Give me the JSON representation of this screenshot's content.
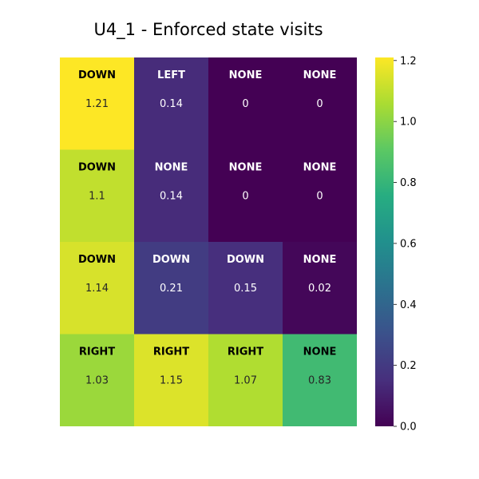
{
  "chart_data": {
    "type": "heatmap",
    "title": "U4_1 - Enforced state visits",
    "rows": 4,
    "cols": 4,
    "cells": [
      [
        {
          "action": "DOWN",
          "value": 1.21,
          "label": "1.21"
        },
        {
          "action": "LEFT",
          "value": 0.14,
          "label": "0.14"
        },
        {
          "action": "NONE",
          "value": 0,
          "label": "0"
        },
        {
          "action": "NONE",
          "value": 0,
          "label": "0"
        }
      ],
      [
        {
          "action": "DOWN",
          "value": 1.1,
          "label": "1.1"
        },
        {
          "action": "NONE",
          "value": 0.14,
          "label": "0.14"
        },
        {
          "action": "NONE",
          "value": 0,
          "label": "0"
        },
        {
          "action": "NONE",
          "value": 0,
          "label": "0"
        }
      ],
      [
        {
          "action": "DOWN",
          "value": 1.14,
          "label": "1.14"
        },
        {
          "action": "DOWN",
          "value": 0.21,
          "label": "0.21"
        },
        {
          "action": "DOWN",
          "value": 0.15,
          "label": "0.15"
        },
        {
          "action": "NONE",
          "value": 0.02,
          "label": "0.02"
        }
      ],
      [
        {
          "action": "RIGHT",
          "value": 1.03,
          "label": "1.03"
        },
        {
          "action": "RIGHT",
          "value": 1.15,
          "label": "1.15"
        },
        {
          "action": "RIGHT",
          "value": 1.07,
          "label": "1.07"
        },
        {
          "action": "NONE",
          "value": 0.83,
          "label": "0.83"
        }
      ]
    ],
    "colorbar": {
      "colormap": "viridis",
      "range": [
        0,
        1.21
      ],
      "ticks": [
        0.0,
        0.2,
        0.4,
        0.6,
        0.8,
        1.0,
        1.2
      ],
      "tick_labels": [
        "0.0",
        "0.2",
        "0.4",
        "0.6",
        "0.8",
        "1.0",
        "1.2"
      ],
      "position": "right"
    },
    "axes_visible": false
  }
}
